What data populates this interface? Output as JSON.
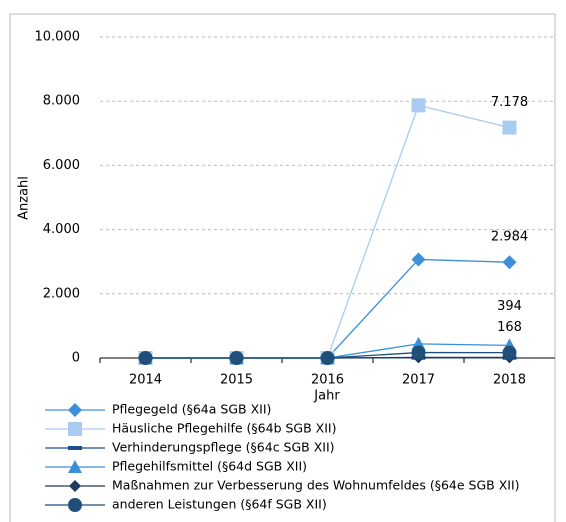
{
  "chart_data": {
    "type": "line",
    "categories": [
      "2014",
      "2015",
      "2016",
      "2017",
      "2018"
    ],
    "x_label": "Jahr",
    "y_label": "Anzahl",
    "ylim": [
      0,
      10000
    ],
    "yticks": [
      0,
      {
        "value": 2000,
        "label": "2.000"
      },
      {
        "value": 4000,
        "label": "4.000"
      },
      {
        "value": 6000,
        "label": "6.000"
      },
      {
        "value": 8000,
        "label": "8.000"
      },
      {
        "value": 10000,
        "label": "10.000"
      }
    ],
    "grid": true,
    "series": [
      {
        "name": "Pflegegeld (§64a SGB XII)",
        "color": "#3d8fdc",
        "marker": "diamond",
        "values": [
          0,
          0,
          0,
          3070,
          2984
        ],
        "value_labels": [
          null,
          null,
          null,
          null,
          "2.984"
        ]
      },
      {
        "name": "Häusliche Pflegehilfe (§64b SGB XII)",
        "color": "#a9cbf0",
        "marker": "square",
        "values": [
          0,
          0,
          0,
          7870,
          7178
        ],
        "value_labels": [
          null,
          null,
          null,
          null,
          "7.178"
        ]
      },
      {
        "name": "Verhinderungspflege (§64c SGB XII)",
        "color": "#1f4e8c",
        "marker": "dash",
        "values": [
          0,
          0,
          0,
          10,
          10
        ]
      },
      {
        "name": "Pflegehilfsmittel (§64d SGB XII)",
        "color": "#3a8fd9",
        "marker": "triangle",
        "values": [
          0,
          0,
          0,
          440,
          394
        ],
        "value_labels": [
          null,
          null,
          null,
          null,
          "394"
        ]
      },
      {
        "name": "Maßnahmen zur Verbesserung des Wohnumfeldes (§64e SGB XII)",
        "color": "#23395d",
        "marker": "diamond-small",
        "values": [
          0,
          0,
          0,
          20,
          20
        ]
      },
      {
        "name": "anderen Leistungen (§64f SGB XII)",
        "color": "#1f4e79",
        "marker": "circle",
        "values": [
          0,
          0,
          0,
          170,
          168
        ],
        "value_labels": [
          null,
          null,
          null,
          null,
          "168"
        ]
      }
    ]
  }
}
